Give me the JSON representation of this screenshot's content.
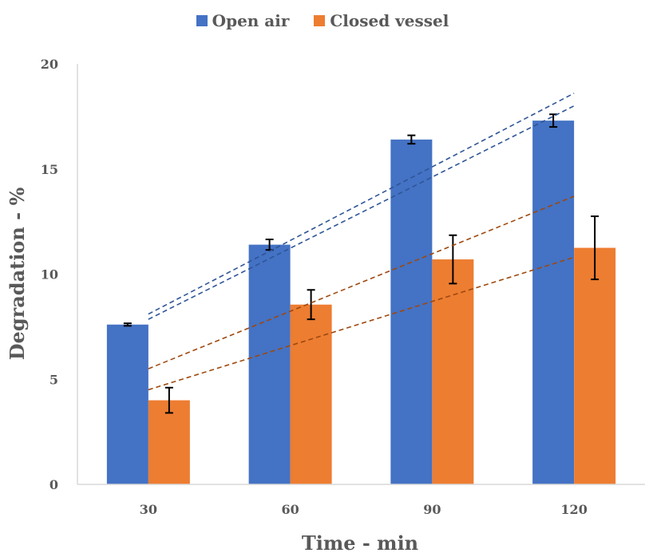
{
  "chart_data": {
    "type": "bar",
    "title": "",
    "xlabel": "Time - min",
    "ylabel": "Degradation - %",
    "categories": [
      "30",
      "60",
      "90",
      "120"
    ],
    "ylim": [
      0,
      20
    ],
    "yticks": [
      0,
      5,
      10,
      15,
      20
    ],
    "legend_position": "top",
    "series": [
      {
        "name": "Open air",
        "color": "#4472C4",
        "values": [
          7.6,
          11.4,
          16.4,
          17.3
        ],
        "errors": [
          0.06,
          0.25,
          0.2,
          0.3
        ]
      },
      {
        "name": "Closed vessel",
        "color": "#ED7D31",
        "values": [
          4.0,
          8.55,
          10.7,
          11.25
        ],
        "errors": [
          0.6,
          0.7,
          1.15,
          1.5
        ]
      }
    ],
    "trendlines": [
      {
        "series": "Open air",
        "style": "dashed",
        "color": "#2F5597",
        "from": [
          30,
          7.85
        ],
        "to": [
          120,
          18.0
        ]
      },
      {
        "series": "Open air",
        "style": "dashed",
        "color": "#2F5597",
        "from": [
          30,
          8.1
        ],
        "to": [
          120,
          18.6
        ]
      },
      {
        "series": "Closed vessel",
        "style": "dashed",
        "color": "#9E480E",
        "from": [
          30,
          5.5
        ],
        "to": [
          120,
          13.7
        ]
      },
      {
        "series": "Closed vessel",
        "style": "dashed",
        "color": "#9E480E",
        "from": [
          30,
          4.5
        ],
        "to": [
          120,
          10.8
        ]
      }
    ],
    "grid": false
  }
}
